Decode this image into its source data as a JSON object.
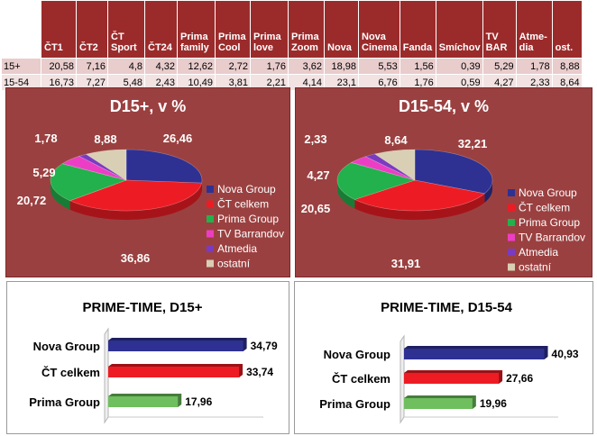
{
  "table": {
    "headers": [
      "",
      "ČT1",
      "ČT2",
      "ČT Sport",
      "ČT24",
      "Prima family",
      "Prima Cool",
      "Prima love",
      "Prima Zoom",
      "Nova",
      "Nova Cinema",
      "Fanda",
      "Smíchov",
      "TV BAR",
      "Atme-dia",
      "ost."
    ],
    "rows": [
      [
        "15+",
        "20,58",
        "7,16",
        "4,8",
        "4,32",
        "12,62",
        "2,72",
        "1,76",
        "3,62",
        "18,98",
        "5,53",
        "1,56",
        "0,39",
        "5,29",
        "1,78",
        "8,88"
      ],
      [
        "15-54",
        "16,73",
        "7,27",
        "5,48",
        "2,43",
        "10,49",
        "3,81",
        "2,21",
        "4,14",
        "23,1",
        "6,76",
        "1,76",
        "0,59",
        "4,27",
        "2,33",
        "8,64"
      ]
    ]
  },
  "chart_data": [
    {
      "type": "pie",
      "title": "D15+, v %",
      "labels": [
        "Nova Group",
        "ČT celkem",
        "Prima Group",
        "TV Barrandov",
        "Atmedia",
        "ostatní"
      ],
      "values": [
        26.46,
        36.86,
        20.72,
        5.29,
        1.78,
        8.88
      ],
      "value_labels": [
        "26,46",
        "36,86",
        "20,72",
        "5,29",
        "1,78",
        "8,88"
      ],
      "colors": [
        "#2e3192",
        "#ed1c24",
        "#22b14c",
        "#ec3ec4",
        "#7a3bc0",
        "#d9cfb4"
      ],
      "legend": "right"
    },
    {
      "type": "pie",
      "title": "D15-54, v %",
      "labels": [
        "Nova Group",
        "ČT celkem",
        "Prima Group",
        "TV Barrandov",
        "Atmedia",
        "ostatní"
      ],
      "values": [
        32.21,
        31.91,
        20.65,
        4.27,
        2.33,
        8.64
      ],
      "value_labels": [
        "32,21",
        "31,91",
        "20,65",
        "4,27",
        "2,33",
        "8,64"
      ],
      "colors": [
        "#2e3192",
        "#ed1c24",
        "#22b14c",
        "#ec3ec4",
        "#7a3bc0",
        "#d9cfb4"
      ],
      "legend": "right"
    },
    {
      "type": "bar",
      "orientation": "horizontal",
      "title": "PRIME-TIME, D15+",
      "categories": [
        "Nova Group",
        "ČT celkem",
        "Prima Group"
      ],
      "values": [
        34.79,
        33.74,
        17.96
      ],
      "value_labels": [
        "34,79",
        "33,74",
        "17,96"
      ],
      "colors": [
        "#2e3192",
        "#ed1c24",
        "#6fbf5f"
      ],
      "xlim": [
        0,
        40
      ]
    },
    {
      "type": "bar",
      "orientation": "horizontal",
      "title": "PRIME-TIME, D15-54",
      "categories": [
        "Nova Group",
        "ČT celkem",
        "Prima Group"
      ],
      "values": [
        40.93,
        27.66,
        19.96
      ],
      "value_labels": [
        "40,93",
        "27,66",
        "19,96"
      ],
      "colors": [
        "#2e3192",
        "#ed1c24",
        "#6fbf5f"
      ],
      "xlim": [
        0,
        45
      ]
    }
  ]
}
